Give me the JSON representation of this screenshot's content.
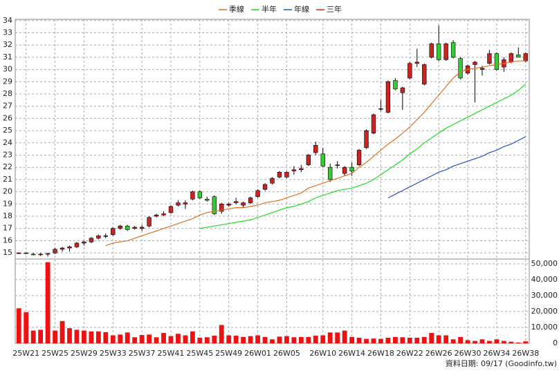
{
  "chart_data": [
    {
      "type": "candlestick",
      "categories": [
        null,
        "25W21",
        null,
        null,
        null,
        "25W25",
        null,
        null,
        null,
        "25W29",
        null,
        null,
        null,
        "25W33",
        null,
        null,
        null,
        "25W37",
        null,
        null,
        null,
        "25W41",
        null,
        null,
        null,
        "25W45",
        null,
        null,
        null,
        "25W49",
        null,
        null,
        null,
        "26W01",
        null,
        null,
        null,
        "26W05",
        null,
        null,
        null,
        null,
        "26W10",
        null,
        null,
        null,
        "26W14",
        null,
        null,
        null,
        "26W18",
        null,
        null,
        null,
        "26W22",
        null,
        null,
        null,
        "26W26",
        null,
        null,
        null,
        "26W30",
        null,
        null,
        null,
        "26W34",
        null,
        null,
        null,
        "26W38"
      ],
      "open": [
        15.0,
        15.0,
        14.9,
        14.85,
        14.9,
        15.0,
        15.3,
        15.4,
        15.5,
        15.8,
        15.9,
        16.2,
        16.4,
        16.5,
        17.0,
        17.2,
        17.0,
        17.0,
        17.2,
        18.0,
        18.1,
        18.3,
        18.9,
        19.0,
        19.4,
        20.0,
        19.4,
        19.6,
        18.4,
        18.9,
        19.1,
        18.9,
        19.1,
        19.6,
        20.2,
        20.7,
        21.2,
        21.2,
        21.7,
        21.8,
        22.2,
        23.2,
        23.1,
        22.0,
        22.2,
        21.5,
        22.0,
        22.2,
        23.6,
        24.8,
        26.8,
        26.5,
        29.1,
        28.1,
        29.3,
        30.5,
        28.8,
        31.0,
        32.1,
        30.8,
        32.2,
        30.9,
        29.7,
        30.4,
        30.0,
        30.5,
        31.3,
        30.2,
        30.6,
        31.2,
        30.7
      ],
      "high": [
        15.05,
        15.05,
        15.0,
        15.0,
        15.0,
        15.4,
        15.5,
        15.6,
        15.9,
        16.0,
        16.3,
        16.5,
        16.6,
        17.1,
        17.3,
        17.3,
        17.2,
        17.3,
        18.0,
        18.2,
        18.4,
        18.9,
        19.3,
        19.3,
        20.1,
        20.1,
        19.6,
        19.7,
        19.1,
        19.1,
        19.5,
        19.2,
        19.6,
        20.2,
        20.7,
        21.2,
        21.7,
        21.7,
        22.1,
        22.2,
        23.1,
        24.1,
        23.6,
        22.3,
        22.5,
        22.1,
        22.4,
        23.5,
        25.1,
        26.4,
        27.5,
        29.1,
        29.3,
        28.6,
        30.6,
        31.7,
        30.5,
        32.2,
        33.6,
        32.2,
        32.4,
        31.0,
        30.4,
        30.7,
        30.3,
        31.6,
        31.4,
        31.0,
        31.4,
        31.8,
        31.4
      ],
      "low": [
        14.95,
        14.9,
        14.8,
        14.75,
        14.7,
        14.9,
        15.1,
        15.1,
        15.4,
        15.6,
        15.8,
        16.1,
        16.2,
        16.4,
        16.9,
        16.8,
        16.9,
        16.8,
        17.1,
        17.9,
        18.0,
        18.2,
        18.8,
        18.6,
        19.3,
        19.4,
        19.2,
        18.1,
        18.2,
        18.8,
        19.0,
        18.7,
        19.0,
        19.5,
        20.1,
        20.6,
        21.1,
        21.1,
        21.4,
        21.6,
        22.1,
        23.0,
        22.0,
        20.8,
        21.9,
        21.3,
        21.3,
        22.1,
        23.5,
        24.7,
        26.6,
        26.4,
        28.3,
        26.7,
        29.2,
        30.2,
        28.7,
        30.9,
        30.7,
        30.7,
        30.9,
        29.2,
        29.6,
        27.3,
        29.5,
        30.4,
        29.9,
        29.8,
        30.5,
        31.0,
        30.6
      ],
      "close": [
        15.0,
        14.95,
        14.85,
        14.9,
        14.95,
        15.3,
        15.4,
        15.5,
        15.8,
        15.9,
        16.2,
        16.4,
        16.4,
        17.0,
        17.2,
        16.9,
        17.1,
        17.1,
        17.9,
        18.1,
        18.2,
        18.8,
        19.1,
        19.1,
        20.0,
        19.5,
        19.3,
        18.2,
        19.0,
        19.0,
        19.2,
        19.1,
        19.5,
        20.1,
        20.6,
        21.1,
        21.6,
        21.6,
        21.8,
        21.9,
        23.0,
        23.8,
        22.1,
        21.0,
        22.2,
        22.0,
        21.7,
        23.4,
        25.0,
        26.3,
        26.8,
        29.0,
        28.4,
        28.5,
        30.5,
        30.6,
        30.4,
        32.1,
        30.8,
        32.1,
        31.0,
        29.3,
        30.3,
        30.6,
        30.1,
        31.3,
        30.0,
        30.8,
        31.3,
        31.0,
        31.3
      ],
      "up_color": "#cc2222",
      "down_color": "#33cc33",
      "series": [
        {
          "name": "季線",
          "color": "#e07020",
          "values": [
            null,
            null,
            null,
            null,
            null,
            null,
            null,
            null,
            null,
            null,
            null,
            null,
            15.6,
            15.8,
            15.9,
            16.0,
            16.2,
            16.4,
            16.6,
            16.8,
            17.0,
            17.2,
            17.4,
            17.6,
            17.8,
            18.1,
            18.3,
            18.4,
            18.5,
            18.6,
            18.7,
            18.7,
            18.8,
            18.9,
            19.1,
            19.2,
            19.3,
            19.5,
            19.7,
            19.9,
            20.3,
            20.5,
            20.7,
            20.9,
            21.1,
            21.3,
            21.5,
            22.0,
            22.4,
            22.9,
            23.4,
            23.9,
            24.3,
            24.8,
            25.3,
            25.9,
            26.5,
            27.2,
            27.9,
            28.6,
            29.3,
            29.8,
            30.0,
            30.1,
            30.2,
            30.3,
            30.4,
            30.5,
            30.6,
            30.7,
            30.7
          ]
        },
        {
          "name": "半年",
          "color": "#22dd22",
          "values": [
            null,
            null,
            null,
            null,
            null,
            null,
            null,
            null,
            null,
            null,
            null,
            null,
            null,
            null,
            null,
            null,
            null,
            null,
            null,
            null,
            null,
            null,
            null,
            null,
            null,
            17.0,
            17.1,
            17.2,
            17.3,
            17.4,
            17.5,
            17.6,
            17.7,
            17.9,
            18.1,
            18.3,
            18.5,
            18.7,
            18.8,
            19.0,
            19.2,
            19.5,
            19.7,
            19.9,
            20.1,
            20.2,
            20.3,
            20.5,
            20.7,
            21.0,
            21.4,
            21.8,
            22.2,
            22.6,
            23.1,
            23.5,
            24.0,
            24.4,
            24.8,
            25.2,
            25.5,
            25.8,
            26.1,
            26.4,
            26.7,
            27.0,
            27.3,
            27.6,
            27.9,
            28.3,
            28.8
          ]
        },
        {
          "name": "年線",
          "color": "#2050c0",
          "values": [
            null,
            null,
            null,
            null,
            null,
            null,
            null,
            null,
            null,
            null,
            null,
            null,
            null,
            null,
            null,
            null,
            null,
            null,
            null,
            null,
            null,
            null,
            null,
            null,
            null,
            null,
            null,
            null,
            null,
            null,
            null,
            null,
            null,
            null,
            null,
            null,
            null,
            null,
            null,
            null,
            null,
            null,
            null,
            null,
            null,
            null,
            null,
            null,
            null,
            null,
            null,
            19.5,
            19.8,
            20.1,
            20.4,
            20.7,
            21.0,
            21.3,
            21.6,
            21.8,
            22.1,
            22.3,
            22.5,
            22.7,
            22.9,
            23.2,
            23.4,
            23.7,
            23.9,
            24.2,
            24.5
          ]
        },
        {
          "name": "三年",
          "color": "#dd2222",
          "values": [
            null,
            null,
            null,
            null,
            null,
            null,
            null,
            null,
            null,
            null,
            null,
            null,
            null,
            null,
            null,
            null,
            null,
            null,
            null,
            null,
            null,
            null,
            null,
            null,
            null,
            null,
            null,
            null,
            null,
            null,
            null,
            null,
            null,
            null,
            null,
            null,
            null,
            null,
            null,
            null,
            null,
            null,
            null,
            null,
            null,
            null,
            null,
            null,
            null,
            null,
            null,
            null,
            null,
            null,
            null,
            null,
            null,
            null,
            null,
            null,
            null,
            null,
            null,
            null,
            null,
            null,
            null,
            null,
            null,
            null,
            null
          ]
        }
      ],
      "ylim": [
        14.5,
        34.1
      ],
      "yticks": [
        15,
        16,
        17,
        18,
        19,
        20,
        21,
        22,
        23,
        24,
        25,
        26,
        27,
        28,
        29,
        30,
        31,
        32,
        33,
        34
      ],
      "grid": true
    },
    {
      "type": "bar",
      "values": [
        22000,
        19500,
        8000,
        8500,
        51000,
        8000,
        14000,
        9500,
        8500,
        8000,
        7500,
        7500,
        7000,
        5000,
        5500,
        6800,
        3800,
        5200,
        5500,
        3800,
        6500,
        4500,
        6000,
        5000,
        7500,
        3500,
        3800,
        4800,
        11500,
        5000,
        4800,
        4000,
        4500,
        5000,
        4000,
        2500,
        4200,
        4500,
        3800,
        4000,
        4000,
        4800,
        5000,
        6800,
        6800,
        8000,
        4000,
        3500,
        2800,
        3000,
        2800,
        3500,
        4000,
        3800,
        3500,
        3500,
        4000,
        6500,
        5000,
        5000,
        2500,
        4000,
        2000,
        1500,
        2500,
        1500,
        2500,
        1500,
        1000,
        500,
        1200
      ],
      "color": "#ee1111",
      "ylim": [
        0,
        53000
      ],
      "yticks": [
        0,
        {
          "value": 10000,
          "label": "10,000"
        },
        {
          "value": 20000,
          "label": "20,000"
        },
        {
          "value": 30000,
          "label": "30,000"
        },
        {
          "value": 40000,
          "label": "40,000"
        },
        {
          "value": 50000,
          "label": "50,000"
        }
      ],
      "grid": true
    }
  ],
  "footer": "資料日期: 09/17 (Goodinfo.tw)"
}
